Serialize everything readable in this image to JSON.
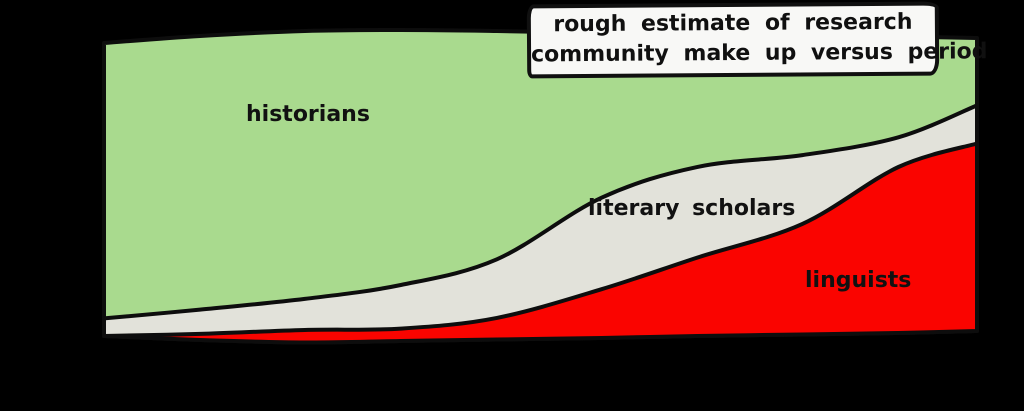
{
  "title_box": {
    "line1": "rough estimate of research",
    "line2": "community make up versus period"
  },
  "area_labels": {
    "historians": "historians",
    "literary_scholars": "literary scholars",
    "linguists": "linguists"
  },
  "colors": {
    "background": "#000000",
    "historians_fill": "#a9da8e",
    "literary_scholars_fill": "#e2e2da",
    "linguists_fill": "#fa0400",
    "outline": "#0d0d0d",
    "title_box_bg": "#f8f8f6",
    "text": "#111111"
  },
  "chart_data": {
    "type": "area",
    "stacked": true,
    "title": "rough estimate of research community make up versus period",
    "xlabel": "",
    "ylabel": "",
    "ylim": [
      0,
      100
    ],
    "grid": false,
    "legend": "labels drawn inside areas",
    "x": [
      0,
      0.11,
      0.23,
      0.34,
      0.45,
      0.57,
      0.68,
      0.8,
      0.91,
      1
    ],
    "series": [
      {
        "name": "historians",
        "color": "#a9da8e",
        "values": [
          94,
          90,
          86,
          82,
          74,
          54,
          44,
          40,
          34,
          23
        ]
      },
      {
        "name": "literary scholars",
        "color": "#e2e2da",
        "values": [
          6,
          8,
          10,
          14,
          19,
          30,
          30,
          23,
          10,
          13
        ]
      },
      {
        "name": "linguists",
        "color": "#fa0400",
        "values": [
          0,
          2,
          4,
          4,
          7,
          16,
          26,
          37,
          56,
          64
        ]
      }
    ]
  }
}
